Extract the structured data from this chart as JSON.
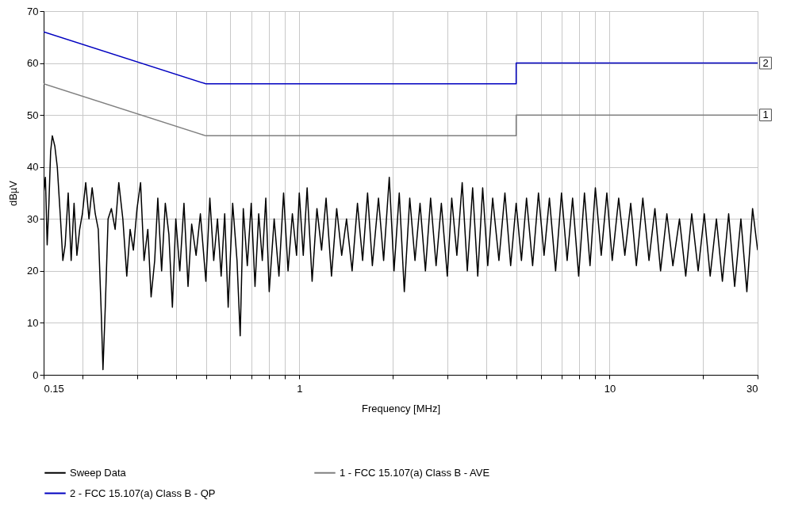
{
  "chart_data": {
    "type": "line",
    "xlabel": "Frequency [MHz]",
    "ylabel": "dBµV",
    "log": "x",
    "grid": true,
    "legend": "bottom",
    "line_style": "solid",
    "marker": "none",
    "xlim": [
      0.15,
      30
    ],
    "ylim": [
      0,
      70
    ],
    "xticks": [
      0.15,
      {
        "value": 0.2,
        "label": null
      },
      {
        "value": 0.3,
        "label": null
      },
      {
        "value": 0.4,
        "label": null
      },
      {
        "value": 0.5,
        "label": null
      },
      {
        "value": 0.6,
        "label": null
      },
      {
        "value": 0.7,
        "label": null
      },
      {
        "value": 0.8,
        "label": null
      },
      {
        "value": 0.9,
        "label": null
      },
      1,
      {
        "value": 2,
        "label": null
      },
      {
        "value": 3,
        "label": null
      },
      {
        "value": 4,
        "label": null
      },
      {
        "value": 5,
        "label": null
      },
      {
        "value": 6,
        "label": null
      },
      {
        "value": 7,
        "label": null
      },
      {
        "value": 8,
        "label": null
      },
      {
        "value": 9,
        "label": null
      },
      10,
      {
        "value": 20,
        "label": null
      },
      30
    ],
    "yticks": [
      0,
      10,
      20,
      30,
      40,
      50,
      60,
      70
    ],
    "annotations": [
      {
        "text": "2",
        "x": 30,
        "y": 60
      },
      {
        "text": "1",
        "x": 30,
        "y": 50
      }
    ],
    "series": [
      {
        "name": "Sweep Data",
        "color": "#000000",
        "x": [
          0.15,
          0.152,
          0.154,
          0.156,
          0.158,
          0.16,
          0.163,
          0.166,
          0.17,
          0.173,
          0.176,
          0.18,
          0.184,
          0.188,
          0.192,
          0.196,
          0.2,
          0.205,
          0.21,
          0.215,
          0.22,
          0.225,
          0.23,
          0.233,
          0.237,
          0.242,
          0.248,
          0.255,
          0.262,
          0.27,
          0.278,
          0.285,
          0.292,
          0.3,
          0.308,
          0.316,
          0.325,
          0.333,
          0.342,
          0.35,
          0.36,
          0.37,
          0.38,
          0.39,
          0.4,
          0.412,
          0.425,
          0.438,
          0.45,
          0.465,
          0.48,
          0.5,
          0.515,
          0.53,
          0.545,
          0.56,
          0.575,
          0.59,
          0.61,
          0.63,
          0.645,
          0.66,
          0.68,
          0.7,
          0.72,
          0.74,
          0.76,
          0.78,
          0.8,
          0.83,
          0.86,
          0.89,
          0.92,
          0.95,
          0.98,
          1.0,
          1.03,
          1.06,
          1.1,
          1.14,
          1.18,
          1.22,
          1.27,
          1.32,
          1.37,
          1.42,
          1.48,
          1.54,
          1.6,
          1.66,
          1.72,
          1.8,
          1.87,
          1.95,
          2.02,
          2.1,
          2.18,
          2.27,
          2.36,
          2.45,
          2.55,
          2.65,
          2.76,
          2.87,
          3.0,
          3.1,
          3.22,
          3.35,
          3.48,
          3.62,
          3.76,
          3.9,
          4.05,
          4.2,
          4.4,
          4.6,
          4.8,
          5.0,
          5.2,
          5.4,
          5.65,
          5.9,
          6.15,
          6.4,
          6.7,
          7.0,
          7.3,
          7.6,
          7.95,
          8.3,
          8.65,
          9.0,
          9.4,
          9.8,
          10.2,
          10.7,
          11.2,
          11.7,
          12.2,
          12.8,
          13.4,
          14.0,
          14.6,
          15.3,
          16.0,
          16.8,
          17.6,
          18.4,
          19.3,
          20.2,
          21.1,
          22.1,
          23.1,
          24.2,
          25.3,
          26.5,
          27.7,
          28.9,
          30
        ],
        "values": [
          35,
          38,
          25,
          33,
          43,
          46,
          44,
          40,
          30,
          22,
          25,
          35,
          22,
          33,
          23,
          28,
          31,
          37,
          30,
          36,
          31,
          28,
          12,
          1,
          13,
          30,
          32,
          28,
          37,
          30,
          19,
          28,
          24,
          32,
          37,
          22,
          28,
          15,
          22,
          34,
          20,
          33,
          27,
          13,
          30,
          20,
          33,
          17,
          29,
          23,
          31,
          18,
          34,
          22,
          30,
          19,
          31,
          13,
          33,
          22,
          7.5,
          32,
          21,
          33,
          17,
          31,
          22,
          34,
          16,
          30,
          19,
          35,
          20,
          31,
          23,
          35,
          23,
          36,
          18,
          32,
          24,
          34,
          19,
          32,
          23,
          30,
          20,
          33,
          22,
          35,
          21,
          34,
          22,
          38,
          20,
          35,
          16,
          34,
          22,
          33,
          20,
          34,
          21,
          33,
          19,
          34,
          23,
          37,
          20,
          36,
          19,
          36,
          21,
          34,
          22,
          35,
          21,
          33,
          22,
          34,
          21,
          35,
          23,
          34,
          20,
          35,
          22,
          34,
          19,
          35,
          21,
          36,
          23,
          35,
          22,
          34,
          23,
          33,
          21,
          34,
          22,
          32,
          20,
          31,
          21,
          30,
          19,
          31,
          20,
          31,
          19,
          30,
          18,
          31,
          17,
          30,
          16,
          32,
          24
        ]
      },
      {
        "name": "1 - FCC 15.107(a) Class B - AVE",
        "color": "#808080",
        "x": [
          0.15,
          0.5,
          5,
          5,
          30
        ],
        "values": [
          56,
          46,
          46,
          50,
          50
        ]
      },
      {
        "name": "2 - FCC 15.107(a) Class B - QP",
        "color": "#0000c0",
        "x": [
          0.15,
          0.5,
          5,
          5,
          30
        ],
        "values": [
          66,
          56,
          56,
          60,
          60
        ]
      }
    ]
  }
}
